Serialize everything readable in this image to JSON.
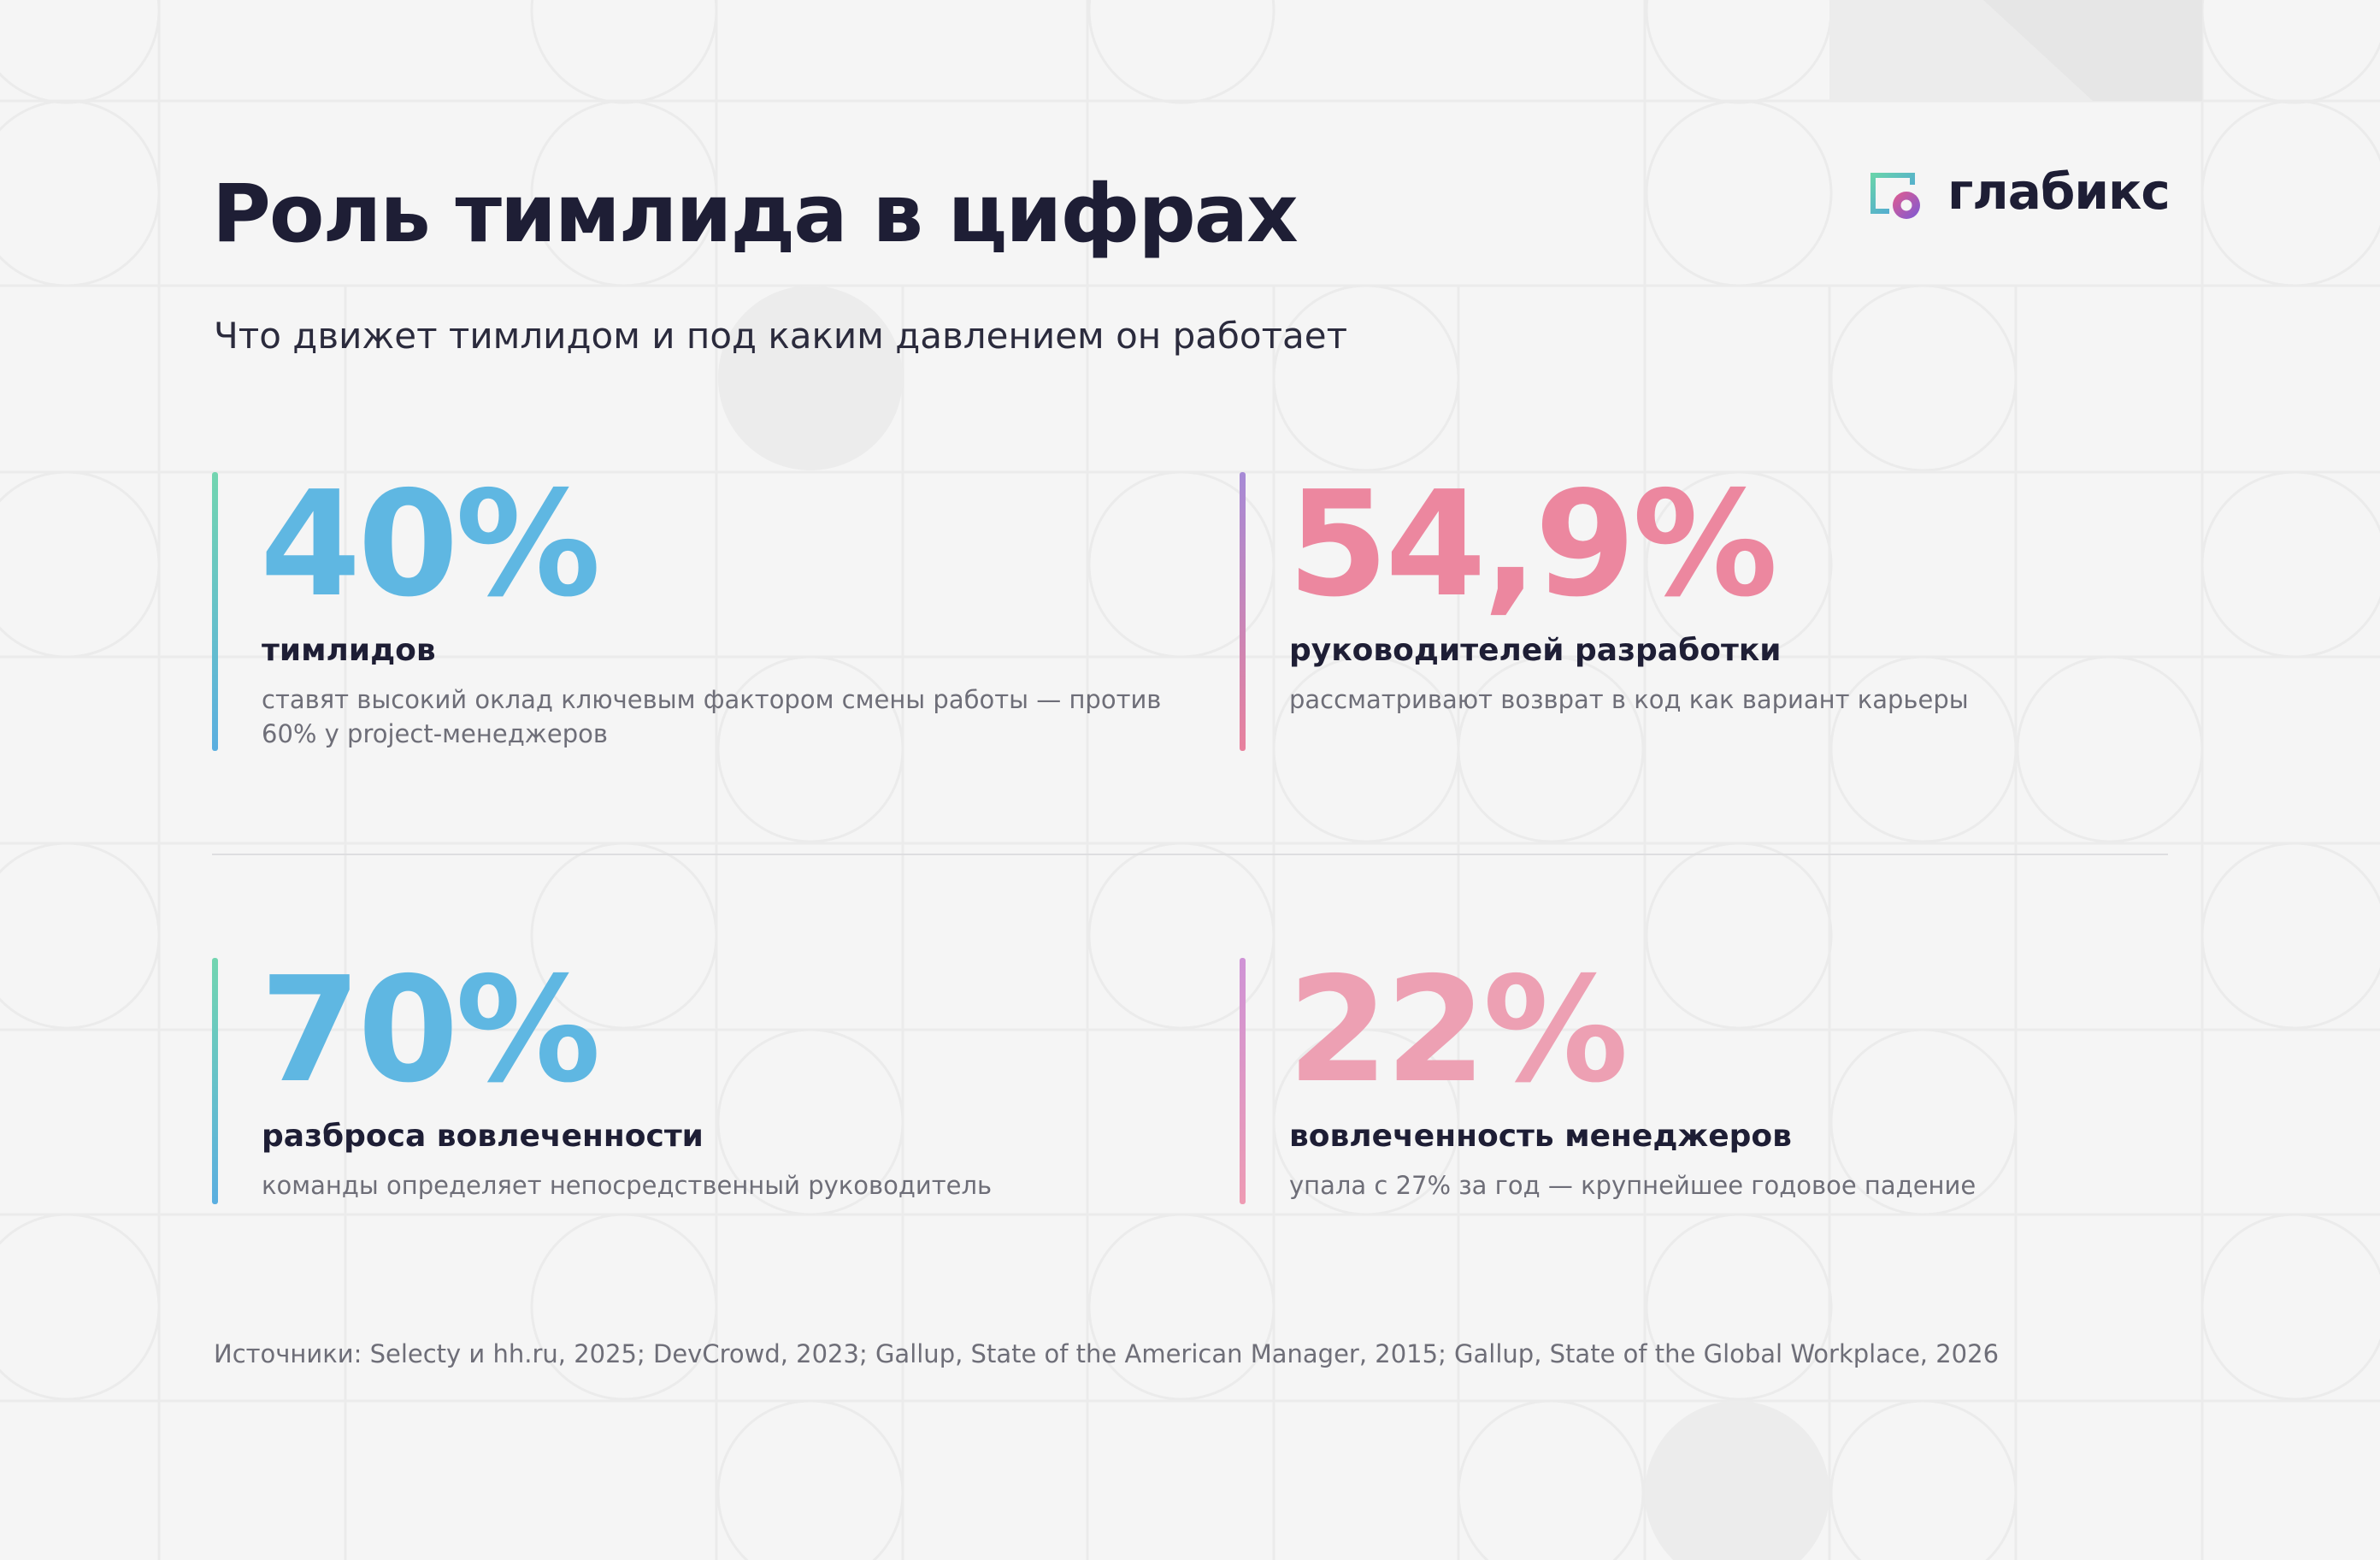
{
  "title": "Роль тимлида в цифрах",
  "subtitle": "Что движет тимлидом и под каким давлением он работает",
  "logo": {
    "text": "глабикс",
    "icon": "glabix-logo-icon"
  },
  "stats": [
    {
      "value": "40%",
      "label": "тимлидов",
      "description": "ставят высокий оклад ключевым фактором смены работы — против 60% у project-менеджеров",
      "color": "#5fb7e2"
    },
    {
      "value": "54,9%",
      "label": "руководителей разработки",
      "description": "рассматривают возврат в код как вариант карьеры",
      "color": "#ec879f"
    },
    {
      "value": "70%",
      "label": "разброса вовлеченности",
      "description": "команды определяет непосредственный руководитель",
      "color": "#5fb7e2"
    },
    {
      "value": "22%",
      "label": "вовлеченность менеджеров",
      "description": "упала с 27% за год — крупнейшее годовое падение",
      "color": "#eda0b3"
    }
  ],
  "sources": "Источники: Selecty и hh.ru, 2025; DevCrowd, 2023; Gallup, State of the American Manager, 2015; Gallup, State of the Global Workplace, 2026"
}
